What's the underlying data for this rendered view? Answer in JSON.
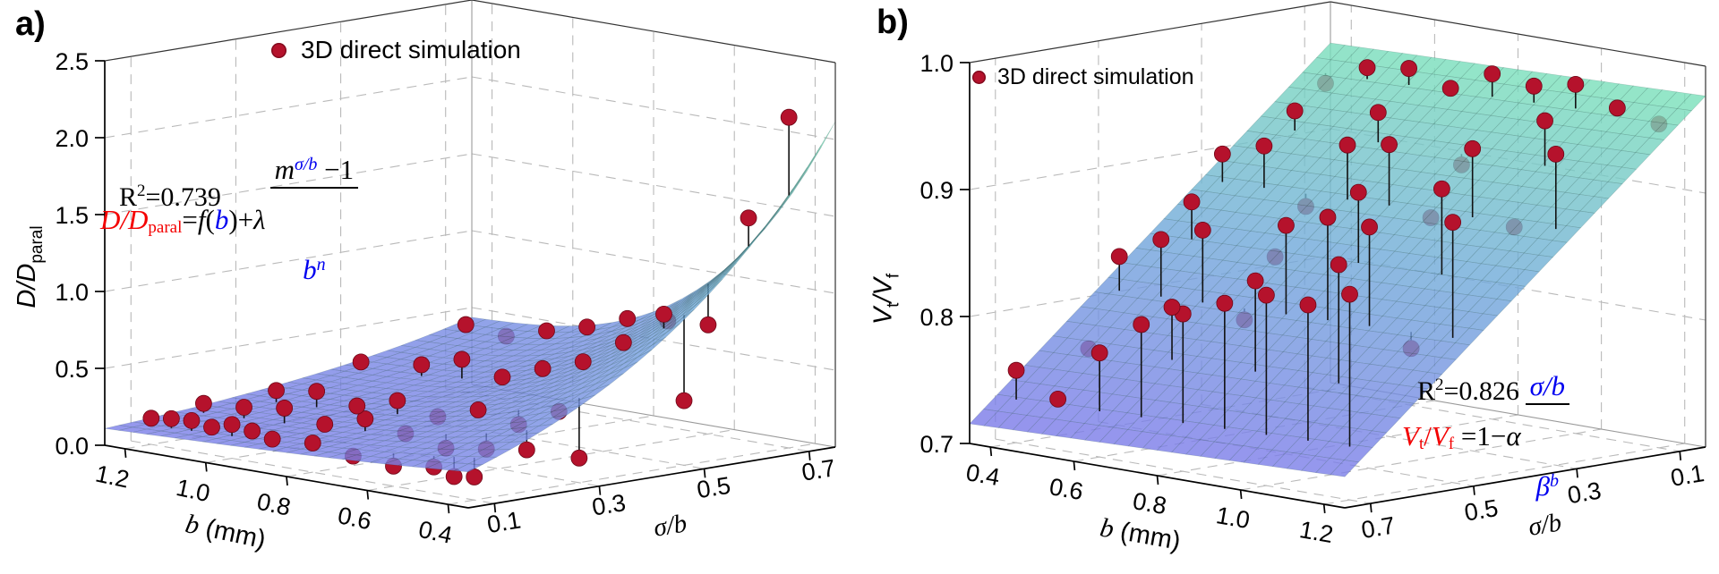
{
  "panels": {
    "a": {
      "letter": "a)",
      "legend": "3D direct simulation",
      "r2": {
        "base": "R",
        "sup": "2",
        "rest": "=0.739"
      },
      "ztitle": "D/D",
      "ztitle_sub": "paral",
      "ztitle2": "",
      "ztitle2_sub": "",
      "eq": {
        "lhs": "D/D",
        "lhs_sub": "paral",
        "eq1": "=",
        "f": "f",
        "p1": "(",
        "b": "b",
        "p2": ")+",
        "lambda": "λ",
        "num_m": "m",
        "num_sup": "σ/b",
        "num_tail": " −1",
        "den_b": "b",
        "den_sup": "n"
      }
    },
    "b": {
      "letter": "b)",
      "legend": "3D direct simulation",
      "r2": {
        "base": "R",
        "sup": "2",
        "rest": "=0.826"
      },
      "ztitle": "V",
      "ztitle_sub": "t",
      "ztitle2": "/V",
      "ztitle2_sub": "f",
      "eq": {
        "lhs1": "V",
        "sub1": "t",
        "sl": "/",
        "lhs2": "V",
        "sub2": "f",
        "mid": " =1−",
        "alpha": "α",
        "num": "σ/b",
        "den": "β",
        "den_sup": "b"
      }
    }
  },
  "colors": {
    "point": "#b5122c",
    "point_edge": "#6e0818",
    "surface_low": "#7b79ea",
    "surface_mid": "#6fa9d9",
    "surface_high": "#7ae6b6",
    "grid": "#b9b9b9",
    "pane_edge": "#9a9a9a",
    "axis": "#000000"
  },
  "chart_data": [
    {
      "type": "scatter",
      "subtype": "3d-scatter-with-fitted-surface",
      "panel": "a",
      "legend": [
        "3D direct simulation"
      ],
      "legend_position": "top-center",
      "grid": true,
      "xlabel_main": "b",
      "xlabel_rest": " (mm)",
      "ylabel": "σ/b",
      "zlabel": "D/D_paral",
      "x_range": [
        1.25,
        0.35
      ],
      "x_reversed": true,
      "y_range": [
        0.05,
        0.75
      ],
      "z_range": [
        0.0,
        2.5
      ],
      "x_ticks": [
        1.2,
        1.0,
        0.8,
        0.6,
        0.4
      ],
      "x_tick_labels": [
        "1.2",
        "1.0",
        "0.8",
        "0.6",
        "0.4"
      ],
      "y_ticks": [
        0.1,
        0.3,
        0.5,
        0.7
      ],
      "y_tick_labels": [
        "0.1",
        "0.3",
        "0.5",
        "0.7"
      ],
      "z_ticks": [
        0.0,
        0.5,
        1.0,
        1.5,
        2.0,
        2.5
      ],
      "z_tick_labels": [
        "0.0",
        "0.5",
        "1.0",
        "1.5",
        "2.0",
        "2.5"
      ],
      "fit_equation": "D/D_paral = f(b) + λ(m^(σ/b) − 1)/b^n",
      "r_squared": 0.739,
      "surface_model": {
        "form": "exp",
        "a0": 0.1,
        "a1": 0.09,
        "c0": 0.08,
        "c1": 0.38,
        "k": 2.2
      },
      "color_scale": {
        "zmin": 0.0,
        "zmax": 2.12
      },
      "points": [
        [
          1.2,
          0.1,
          0.17
        ],
        [
          1.15,
          0.1,
          0.19
        ],
        [
          1.1,
          0.1,
          0.2
        ],
        [
          1.05,
          0.1,
          0.18
        ],
        [
          1.0,
          0.1,
          0.22
        ],
        [
          0.95,
          0.1,
          0.2
        ],
        [
          0.9,
          0.1,
          0.17
        ],
        [
          0.8,
          0.1,
          0.19
        ],
        [
          0.7,
          0.1,
          0.15
        ],
        [
          0.6,
          0.1,
          0.13
        ],
        [
          0.5,
          0.1,
          0.17
        ],
        [
          0.45,
          0.1,
          0.13
        ],
        [
          0.4,
          0.1,
          0.15
        ],
        [
          1.2,
          0.2,
          0.21
        ],
        [
          1.1,
          0.2,
          0.23
        ],
        [
          1.0,
          0.2,
          0.27
        ],
        [
          0.9,
          0.2,
          0.21
        ],
        [
          0.8,
          0.2,
          0.29
        ],
        [
          0.7,
          0.2,
          0.24
        ],
        [
          0.6,
          0.2,
          0.19
        ],
        [
          0.5,
          0.2,
          0.23
        ],
        [
          0.4,
          0.2,
          0.27
        ],
        [
          1.15,
          0.3,
          0.26
        ],
        [
          1.05,
          0.3,
          0.3
        ],
        [
          0.95,
          0.3,
          0.25
        ],
        [
          0.85,
          0.3,
          0.33
        ],
        [
          0.75,
          0.3,
          0.27
        ],
        [
          0.65,
          0.3,
          0.36
        ],
        [
          0.55,
          0.3,
          0.31
        ],
        [
          0.45,
          0.3,
          0.44
        ],
        [
          0.4,
          0.3,
          0.16
        ],
        [
          1.2,
          0.5,
          0.31
        ],
        [
          1.05,
          0.5,
          0.36
        ],
        [
          0.95,
          0.5,
          0.44
        ],
        [
          0.85,
          0.5,
          0.37
        ],
        [
          0.75,
          0.5,
          0.47
        ],
        [
          0.65,
          0.5,
          0.56
        ],
        [
          0.55,
          0.5,
          0.73
        ],
        [
          0.45,
          0.5,
          0.96
        ],
        [
          0.4,
          0.5,
          0.42
        ],
        [
          1.2,
          0.7,
          0.44
        ],
        [
          1.1,
          0.7,
          0.41
        ],
        [
          1.0,
          0.7,
          0.49
        ],
        [
          0.9,
          0.7,
          0.56
        ],
        [
          0.8,
          0.7,
          0.66
        ],
        [
          0.7,
          0.7,
          0.69
        ],
        [
          0.6,
          0.7,
          0.71
        ],
        [
          0.5,
          0.7,
          1.45
        ],
        [
          0.4,
          0.7,
          2.15
        ]
      ],
      "view": {
        "o": [
          117,
          498
        ],
        "ex": [
          406,
          70
        ],
        "ey": [
          410,
          -68
        ],
        "ez": [
          0,
          -430
        ],
        "b": [
          1.25,
          0.35
        ],
        "s": [
          0.05,
          0.75
        ],
        "z": [
          0.0,
          2.5
        ]
      }
    },
    {
      "type": "scatter",
      "subtype": "3d-scatter-with-fitted-surface",
      "panel": "b",
      "legend": [
        "3D direct simulation"
      ],
      "legend_position": "top-left",
      "grid": true,
      "xlabel_main": "b",
      "xlabel_rest": " (mm)",
      "ylabel": "σ/b",
      "zlabel": "V_t/V_f",
      "x_range": [
        0.35,
        1.25
      ],
      "y_range": [
        0.75,
        0.05
      ],
      "y_reversed": true,
      "z_range": [
        0.7,
        1.0
      ],
      "x_ticks": [
        0.4,
        0.6,
        0.8,
        1.0,
        1.2
      ],
      "x_tick_labels": [
        "0.4",
        "0.6",
        "0.8",
        "1.0",
        "1.2"
      ],
      "y_ticks": [
        0.7,
        0.5,
        0.3,
        0.1
      ],
      "y_tick_labels": [
        "0.7",
        "0.5",
        "0.3",
        "0.1"
      ],
      "z_ticks": [
        0.7,
        0.8,
        0.9,
        1.0
      ],
      "z_tick_labels": [
        "0.7",
        "0.8",
        "0.9",
        "1.0"
      ],
      "fit_equation": "V_t/V_f = 1 − α(σ/b)/β^b",
      "r_squared": 0.826,
      "surface_model": {
        "form": "plane",
        "i": 0.99,
        "cs": -0.36,
        "cb": 0.01,
        "bref": 0.8
      },
      "color_scale": {
        "zmin": 0.715,
        "zmax": 0.985
      },
      "points": [
        [
          0.4,
          0.7,
          0.757
        ],
        [
          0.5,
          0.7,
          0.74
        ],
        [
          0.6,
          0.7,
          0.782
        ],
        [
          0.7,
          0.7,
          0.81
        ],
        [
          0.8,
          0.7,
          0.824
        ],
        [
          0.9,
          0.7,
          0.838
        ],
        [
          1.0,
          0.7,
          0.85
        ],
        [
          1.1,
          0.7,
          0.848
        ],
        [
          1.2,
          0.7,
          0.862
        ],
        [
          0.45,
          0.6,
          0.77
        ],
        [
          0.65,
          0.6,
          0.814
        ],
        [
          0.85,
          0.6,
          0.846
        ],
        [
          1.05,
          0.6,
          0.87
        ],
        [
          0.4,
          0.5,
          0.833
        ],
        [
          0.5,
          0.5,
          0.852
        ],
        [
          0.6,
          0.5,
          0.865
        ],
        [
          0.7,
          0.5,
          0.8
        ],
        [
          0.8,
          0.5,
          0.88
        ],
        [
          0.9,
          0.5,
          0.892
        ],
        [
          1.0,
          0.5,
          0.89
        ],
        [
          1.1,
          0.5,
          0.8
        ],
        [
          1.2,
          0.5,
          0.905
        ],
        [
          0.45,
          0.4,
          0.872
        ],
        [
          0.65,
          0.4,
          0.84
        ],
        [
          0.85,
          0.4,
          0.902
        ],
        [
          1.05,
          0.4,
          0.916
        ],
        [
          0.4,
          0.3,
          0.9
        ],
        [
          0.5,
          0.3,
          0.912
        ],
        [
          0.6,
          0.3,
          0.87
        ],
        [
          0.7,
          0.3,
          0.924
        ],
        [
          0.8,
          0.3,
          0.93
        ],
        [
          0.9,
          0.3,
          0.878
        ],
        [
          1.0,
          0.3,
          0.938
        ],
        [
          1.1,
          0.3,
          0.882
        ],
        [
          1.2,
          0.3,
          0.945
        ],
        [
          0.45,
          0.2,
          0.93
        ],
        [
          0.65,
          0.2,
          0.94
        ],
        [
          0.85,
          0.2,
          0.91
        ],
        [
          1.05,
          0.2,
          0.956
        ],
        [
          0.4,
          0.1,
          0.942
        ],
        [
          0.5,
          0.1,
          0.96
        ],
        [
          0.6,
          0.1,
          0.965
        ],
        [
          0.7,
          0.1,
          0.955
        ],
        [
          0.8,
          0.1,
          0.972
        ],
        [
          0.9,
          0.1,
          0.968
        ],
        [
          1.0,
          0.1,
          0.975
        ],
        [
          1.1,
          0.1,
          0.962
        ],
        [
          1.2,
          0.1,
          0.955
        ]
      ],
      "view": {
        "o": [
          1083,
          496
        ],
        "ex": [
          419,
          72
        ],
        "ey": [
          403,
          -68
        ],
        "ez": [
          0,
          -426
        ],
        "b": [
          0.35,
          1.25
        ],
        "s": [
          0.75,
          0.05
        ],
        "z": [
          0.7,
          1.0
        ]
      }
    }
  ]
}
